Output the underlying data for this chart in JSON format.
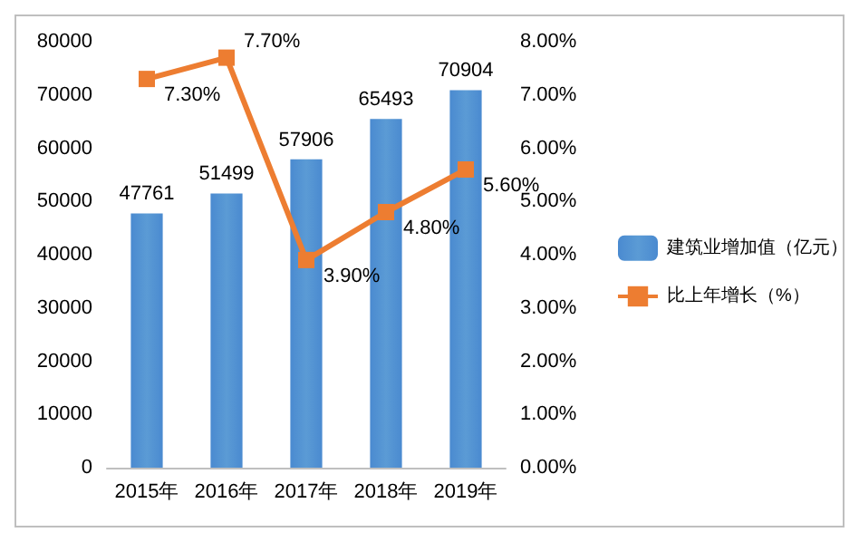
{
  "chart_data": {
    "type": "bar",
    "categories": [
      "2015年",
      "2016年",
      "2017年",
      "2018年",
      "2019年"
    ],
    "series": [
      {
        "name": "建筑业增加值（亿元）",
        "color": "#5b9bd5",
        "values": [
          47761,
          51499,
          57906,
          65493,
          70904
        ],
        "value_labels": [
          "47761",
          "51499",
          "57906",
          "65493",
          "70904"
        ]
      },
      {
        "name": "比上年增长（%）",
        "type": "line",
        "axis": "y2",
        "color": "#ed7d31",
        "values": [
          7.3,
          7.7,
          3.9,
          4.8,
          5.6
        ],
        "value_labels": [
          "7.30%",
          "7.70%",
          "3.90%",
          "4.80%",
          "5.60%"
        ]
      }
    ],
    "ylim": [
      0,
      80000
    ],
    "yticks": [
      0,
      10000,
      20000,
      30000,
      40000,
      50000,
      60000,
      70000,
      80000
    ],
    "y2lim": [
      0,
      8
    ],
    "y2ticks": [
      {
        "value": 0,
        "label": "0.00%"
      },
      {
        "value": 1,
        "label": "1.00%"
      },
      {
        "value": 2,
        "label": "2.00%"
      },
      {
        "value": 3,
        "label": "3.00%"
      },
      {
        "value": 4,
        "label": "4.00%"
      },
      {
        "value": 5,
        "label": "5.00%"
      },
      {
        "value": 6,
        "label": "6.00%"
      },
      {
        "value": 7,
        "label": "7.00%"
      },
      {
        "value": 8,
        "label": "8.00%"
      }
    ],
    "marker": "square",
    "legend": "right",
    "grid": false
  }
}
